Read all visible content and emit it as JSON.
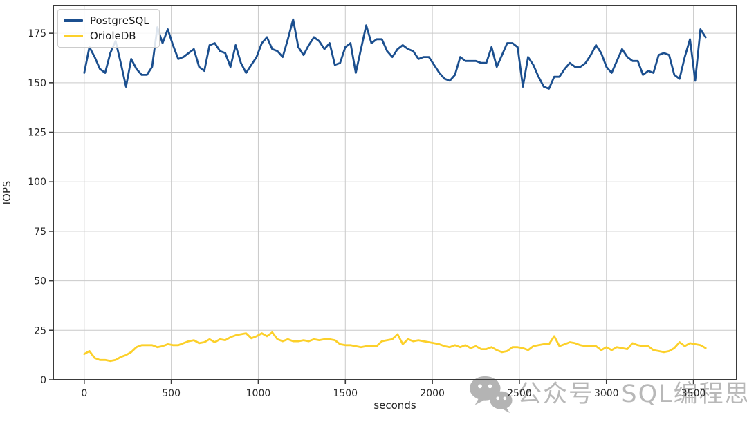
{
  "watermark": {
    "text": "公众号 · SQL编程思想",
    "icon": "wechat-icon",
    "color": "#b5b5b5"
  },
  "chart_data": {
    "type": "line",
    "title": "",
    "xlabel": "seconds",
    "ylabel": "IOPS",
    "grid": true,
    "legend_position": "upper-left",
    "xlim": [
      -178,
      3748
    ],
    "ylim": [
      0,
      189
    ],
    "x_ticks": [
      0,
      500,
      1000,
      1500,
      2000,
      2500,
      3000,
      3500
    ],
    "y_ticks": [
      0,
      25,
      50,
      75,
      100,
      125,
      150,
      175
    ],
    "x": [
      0,
      30,
      60,
      90,
      120,
      150,
      180,
      210,
      240,
      270,
      300,
      330,
      360,
      390,
      420,
      450,
      480,
      510,
      540,
      570,
      600,
      630,
      660,
      690,
      720,
      750,
      780,
      810,
      840,
      870,
      900,
      930,
      960,
      990,
      1020,
      1050,
      1080,
      1110,
      1140,
      1170,
      1200,
      1230,
      1260,
      1290,
      1320,
      1350,
      1380,
      1410,
      1440,
      1470,
      1500,
      1530,
      1560,
      1590,
      1620,
      1650,
      1680,
      1710,
      1740,
      1770,
      1800,
      1830,
      1860,
      1890,
      1920,
      1950,
      1980,
      2010,
      2040,
      2070,
      2100,
      2130,
      2160,
      2190,
      2220,
      2250,
      2280,
      2310,
      2340,
      2370,
      2400,
      2430,
      2460,
      2490,
      2520,
      2550,
      2580,
      2610,
      2640,
      2670,
      2700,
      2730,
      2760,
      2790,
      2820,
      2850,
      2880,
      2910,
      2940,
      2970,
      3000,
      3030,
      3060,
      3090,
      3120,
      3150,
      3180,
      3210,
      3240,
      3270,
      3300,
      3330,
      3360,
      3390,
      3420,
      3450,
      3480,
      3510,
      3540,
      3570
    ],
    "series": [
      {
        "name": "PostgreSQL",
        "color": "#1b4f8f",
        "values": [
          155,
          168,
          163,
          157,
          155,
          165,
          171,
          160,
          148,
          162,
          157,
          154,
          154,
          158,
          178,
          170,
          177,
          169,
          162,
          163,
          165,
          167,
          158,
          156,
          169,
          170,
          166,
          165,
          158,
          169,
          160,
          155,
          159,
          163,
          170,
          173,
          167,
          166,
          163,
          172,
          182,
          168,
          164,
          169,
          173,
          171,
          167,
          170,
          159,
          160,
          168,
          170,
          155,
          167,
          179,
          170,
          172,
          172,
          166,
          163,
          167,
          169,
          167,
          166,
          162,
          163,
          163,
          159,
          155,
          152,
          151,
          154,
          163,
          161,
          161,
          161,
          160,
          160,
          168,
          158,
          164,
          170,
          170,
          168,
          148,
          163,
          159,
          153,
          148,
          147,
          153,
          153,
          157,
          160,
          158,
          158,
          160,
          164,
          169,
          165,
          158,
          155,
          161,
          167,
          163,
          161,
          161,
          154,
          156,
          155,
          164,
          165,
          164,
          154,
          152,
          163,
          172,
          151,
          177,
          173
        ]
      },
      {
        "name": "OrioleDB",
        "color": "#fcd02a",
        "values": [
          13,
          14.5,
          11,
          10,
          10,
          9.5,
          10,
          11.5,
          12.5,
          14,
          16.5,
          17.5,
          17.5,
          17.5,
          16.5,
          17,
          18,
          17.5,
          17.5,
          18.5,
          19.5,
          20,
          18.5,
          19,
          20.5,
          19,
          20.5,
          20,
          21.5,
          22.5,
          23,
          23.5,
          21,
          22,
          23.5,
          22,
          24,
          20.5,
          19.5,
          20.5,
          19.5,
          19.5,
          20,
          19.5,
          20.5,
          20,
          20.5,
          20.5,
          20,
          18,
          17.5,
          17.5,
          17,
          16.5,
          17,
          17,
          17,
          19.5,
          20,
          20.5,
          23,
          18,
          20.5,
          19.5,
          20,
          19.5,
          19,
          18.5,
          18,
          17,
          16.5,
          17.5,
          16.5,
          17.5,
          16,
          17,
          15.5,
          15.5,
          16.5,
          15,
          14,
          14.5,
          16.5,
          16.5,
          16,
          15,
          17,
          17.5,
          18,
          18,
          22,
          17,
          18,
          19,
          18.5,
          17.5,
          17,
          17,
          17,
          15,
          16.5,
          15,
          16.5,
          16,
          15.5,
          18.5,
          17.5,
          17,
          17,
          15,
          14.5,
          14,
          14.5,
          16,
          19,
          17,
          18.5,
          18,
          17.5,
          16
        ]
      }
    ]
  }
}
